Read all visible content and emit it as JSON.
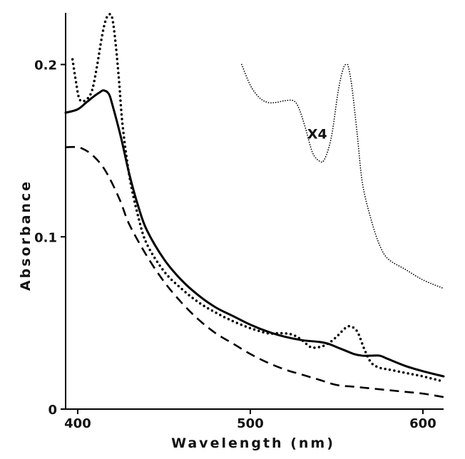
{
  "chart_data": {
    "type": "line",
    "xlabel": "Wavelength (nm)",
    "ylabel": "Absorbance",
    "xlim": [
      393,
      612
    ],
    "ylim": [
      0,
      0.23
    ],
    "xticks": [
      400,
      500,
      600
    ],
    "yticks": [
      0,
      0.1,
      0.2
    ],
    "x_tick_labels": [
      "400",
      "500",
      "600"
    ],
    "y_tick_labels": [
      "0",
      "0.1",
      "0.2"
    ],
    "grid": false,
    "annotations": [
      {
        "text": "X4",
        "x": 533,
        "y": 0.157
      }
    ],
    "series": [
      {
        "style": "solid",
        "color": "#000000",
        "x": [
          393,
          400,
          405,
          410,
          413,
          415,
          418,
          420,
          425,
          430,
          435,
          440,
          450,
          460,
          470,
          480,
          490,
          500,
          510,
          520,
          530,
          540,
          545,
          550,
          555,
          560,
          565,
          570,
          575,
          580,
          590,
          600,
          612
        ],
        "y": [
          0.172,
          0.174,
          0.178,
          0.182,
          0.184,
          0.185,
          0.183,
          0.177,
          0.158,
          0.136,
          0.118,
          0.104,
          0.087,
          0.075,
          0.066,
          0.059,
          0.054,
          0.049,
          0.045,
          0.042,
          0.04,
          0.039,
          0.038,
          0.036,
          0.034,
          0.032,
          0.031,
          0.031,
          0.031,
          0.029,
          0.025,
          0.022,
          0.019
        ]
      },
      {
        "style": "dotted",
        "color": "#000000",
        "x": [
          397,
          399,
          401,
          404,
          408,
          411,
          414,
          416,
          418,
          420,
          422,
          424,
          426,
          430,
          435,
          440,
          450,
          460,
          470,
          480,
          490,
          500,
          510,
          515,
          520,
          525,
          530,
          535,
          540,
          545,
          550,
          555,
          558,
          562,
          566,
          570,
          575,
          580,
          590,
          600,
          612
        ],
        "y": [
          0.203,
          0.19,
          0.18,
          0.179,
          0.184,
          0.198,
          0.216,
          0.225,
          0.229,
          0.227,
          0.212,
          0.19,
          0.165,
          0.135,
          0.112,
          0.096,
          0.08,
          0.07,
          0.062,
          0.056,
          0.051,
          0.047,
          0.044,
          0.044,
          0.044,
          0.043,
          0.04,
          0.036,
          0.036,
          0.038,
          0.042,
          0.047,
          0.048,
          0.045,
          0.035,
          0.027,
          0.024,
          0.023,
          0.021,
          0.019,
          0.016
        ]
      },
      {
        "style": "dashed",
        "color": "#000000",
        "x": [
          393,
          400,
          405,
          410,
          415,
          420,
          425,
          430,
          440,
          450,
          460,
          470,
          480,
          490,
          500,
          510,
          520,
          530,
          540,
          550,
          560,
          570,
          580,
          590,
          600,
          612
        ],
        "y": [
          0.152,
          0.152,
          0.15,
          0.146,
          0.14,
          0.131,
          0.12,
          0.107,
          0.089,
          0.074,
          0.062,
          0.052,
          0.044,
          0.038,
          0.032,
          0.027,
          0.023,
          0.02,
          0.017,
          0.014,
          0.013,
          0.012,
          0.011,
          0.01,
          0.009,
          0.007
        ]
      },
      {
        "style": "fine-dotted",
        "color": "#000000",
        "x": [
          495,
          500,
          505,
          510,
          515,
          520,
          525,
          528,
          532,
          536,
          540,
          543,
          547,
          551,
          554,
          556,
          557,
          559,
          562,
          565,
          570,
          575,
          580,
          590,
          600,
          612
        ],
        "y": [
          0.2,
          0.188,
          0.181,
          0.178,
          0.178,
          0.179,
          0.179,
          0.175,
          0.163,
          0.149,
          0.144,
          0.145,
          0.158,
          0.185,
          0.198,
          0.2,
          0.198,
          0.186,
          0.159,
          0.131,
          0.11,
          0.095,
          0.087,
          0.081,
          0.075,
          0.07
        ]
      }
    ]
  }
}
